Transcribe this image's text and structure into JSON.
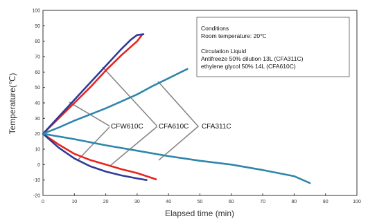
{
  "chart_data": {
    "type": "line",
    "xlabel": "Elapsed time (min)",
    "ylabel": "Temperature(℃)",
    "xlim": [
      0,
      100
    ],
    "ylim": [
      -20,
      100
    ],
    "x_ticks": [
      0,
      10,
      20,
      30,
      40,
      50,
      60,
      70,
      80,
      90,
      100
    ],
    "y_ticks": [
      -20,
      -10,
      0,
      10,
      20,
      30,
      40,
      50,
      60,
      70,
      80,
      90,
      100
    ],
    "grid": false,
    "conditions": {
      "heading": "Conditions",
      "room": "Room temperature: 20℃",
      "liquid_heading": "Circulation Liquid",
      "liquid_line1": "Antifreeze 50% dilution 13L (CFA311C)",
      "liquid_line2": "ethylene glycol 50% 14L (CFA610C)"
    },
    "labels": [
      "CFW610C",
      "CFA610C",
      "CFA311C"
    ],
    "series": [
      {
        "color": "#e8231e",
        "points": [
          [
            0,
            20
          ],
          [
            5,
            30
          ],
          [
            10,
            40
          ],
          [
            15,
            50
          ],
          [
            20,
            61
          ],
          [
            25,
            71
          ],
          [
            30,
            80
          ],
          [
            31.5,
            84
          ]
        ]
      },
      {
        "color": "#2e3b96",
        "points": [
          [
            0,
            20
          ],
          [
            5,
            31
          ],
          [
            10,
            42
          ],
          [
            15,
            53
          ],
          [
            20,
            64
          ],
          [
            25,
            75
          ],
          [
            28,
            81
          ],
          [
            30,
            84
          ],
          [
            32,
            84.5
          ]
        ]
      },
      {
        "color": "#2e86ab",
        "points": [
          [
            0,
            20
          ],
          [
            5,
            24
          ],
          [
            10,
            28.5
          ],
          [
            15,
            32.5
          ],
          [
            20,
            36.5
          ],
          [
            25,
            41
          ],
          [
            30,
            45.5
          ],
          [
            35,
            51
          ],
          [
            40,
            56
          ],
          [
            45,
            61
          ],
          [
            46,
            62
          ]
        ]
      },
      {
        "color": "#e8231e",
        "points": [
          [
            0,
            20
          ],
          [
            5,
            13
          ],
          [
            10,
            7
          ],
          [
            15,
            3
          ],
          [
            20,
            0
          ],
          [
            25,
            -3
          ],
          [
            30,
            -5.5
          ],
          [
            36,
            -9.5
          ]
        ]
      },
      {
        "color": "#2e3b96",
        "points": [
          [
            0,
            20
          ],
          [
            5,
            11
          ],
          [
            10,
            4
          ],
          [
            15,
            -1
          ],
          [
            20,
            -4.5
          ],
          [
            25,
            -7
          ],
          [
            30,
            -9
          ],
          [
            33,
            -10
          ]
        ]
      },
      {
        "color": "#2e86ab",
        "points": [
          [
            0,
            20
          ],
          [
            10,
            16.5
          ],
          [
            20,
            12.5
          ],
          [
            30,
            9
          ],
          [
            40,
            5.5
          ],
          [
            50,
            2.5
          ],
          [
            60,
            0
          ],
          [
            70,
            -3.5
          ],
          [
            80,
            -7.5
          ],
          [
            85,
            -12
          ]
        ]
      }
    ]
  }
}
